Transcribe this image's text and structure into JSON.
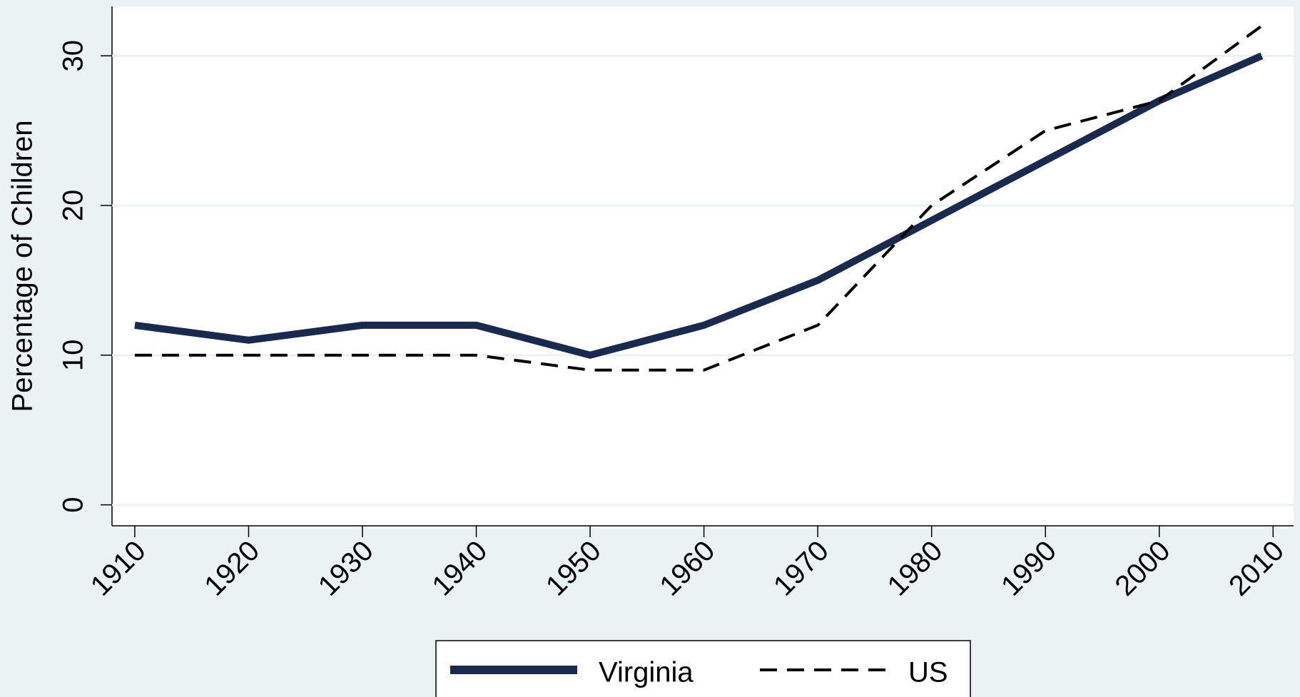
{
  "chart_data": {
    "type": "line",
    "y_label": "Percentage of Children",
    "x": [
      1910,
      1920,
      1930,
      1940,
      1950,
      1960,
      1970,
      1980,
      1990,
      2000,
      2009
    ],
    "series": [
      {
        "name": "Virginia",
        "color": "#1a2a4e",
        "style": "solid",
        "values": [
          12,
          11,
          12,
          12,
          10,
          12,
          15,
          19,
          23,
          27,
          30
        ]
      },
      {
        "name": "US",
        "color": "#000000",
        "style": "dashed",
        "values": [
          10,
          10,
          10,
          10,
          9,
          9,
          12,
          20,
          25,
          27,
          32
        ]
      }
    ],
    "xlim": [
      1908,
      2011.8
    ],
    "xticks": [
      1910,
      1920,
      1930,
      1940,
      1950,
      1960,
      1970,
      1980,
      1990,
      2000,
      2010
    ],
    "ylim": [
      -1.4,
      33.3
    ],
    "yticks": [
      0,
      10,
      20,
      30
    ],
    "grid": true
  }
}
